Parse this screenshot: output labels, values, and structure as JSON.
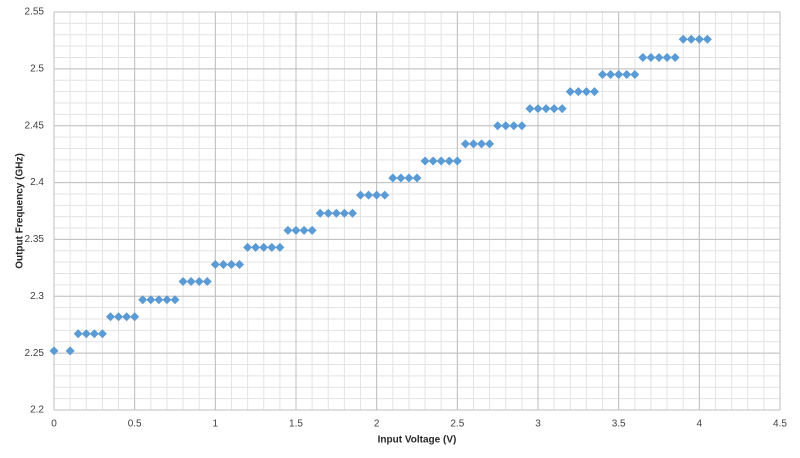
{
  "chart_data": {
    "type": "scatter",
    "xlabel": "Input Voltage (V)",
    "ylabel": "Output Frequency (GHz)",
    "xlim": [
      0,
      4.5
    ],
    "xticks": [
      0,
      0.5,
      1,
      1.5,
      2,
      2.5,
      3,
      3.5,
      4,
      4.5
    ],
    "ylim": [
      2.2,
      2.55
    ],
    "yticks": [
      2.2,
      2.25,
      2.3,
      2.35,
      2.4,
      2.45,
      2.5,
      2.55
    ],
    "grid": true,
    "minor_grid": {
      "x": 0.1,
      "y": 0.01
    },
    "color": "#5b9bd5",
    "x": [
      0,
      0.1,
      0.15,
      0.2,
      0.25,
      0.3,
      0.35,
      0.4,
      0.45,
      0.5,
      0.55,
      0.6,
      0.65,
      0.7,
      0.75,
      0.8,
      0.85,
      0.9,
      0.95,
      1,
      1.05,
      1.1,
      1.15,
      1.2,
      1.25,
      1.3,
      1.35,
      1.4,
      1.45,
      1.5,
      1.55,
      1.6,
      1.65,
      1.7,
      1.75,
      1.8,
      1.85,
      1.9,
      1.95,
      2,
      2.05,
      2.1,
      2.15,
      2.2,
      2.25,
      2.3,
      2.35,
      2.4,
      2.45,
      2.5,
      2.55,
      2.6,
      2.65,
      2.7,
      2.75,
      2.8,
      2.85,
      2.9,
      2.95,
      3,
      3.05,
      3.1,
      3.15,
      3.2,
      3.25,
      3.3,
      3.35,
      3.4,
      3.45,
      3.5,
      3.55,
      3.6,
      3.65,
      3.7,
      3.75,
      3.8,
      3.85,
      3.9,
      3.95,
      4,
      4.05
    ],
    "values": [
      2.252,
      2.252,
      2.267,
      2.267,
      2.267,
      2.267,
      2.282,
      2.282,
      2.282,
      2.282,
      2.297,
      2.297,
      2.297,
      2.297,
      2.297,
      2.313,
      2.313,
      2.313,
      2.313,
      2.328,
      2.328,
      2.328,
      2.328,
      2.343,
      2.343,
      2.343,
      2.343,
      2.343,
      2.358,
      2.358,
      2.358,
      2.358,
      2.373,
      2.373,
      2.373,
      2.373,
      2.373,
      2.389,
      2.389,
      2.389,
      2.389,
      2.404,
      2.404,
      2.404,
      2.404,
      2.419,
      2.419,
      2.419,
      2.419,
      2.419,
      2.434,
      2.434,
      2.434,
      2.434,
      2.45,
      2.45,
      2.45,
      2.45,
      2.465,
      2.465,
      2.465,
      2.465,
      2.465,
      2.48,
      2.48,
      2.48,
      2.48,
      2.495,
      2.495,
      2.495,
      2.495,
      2.495,
      2.51,
      2.51,
      2.51,
      2.51,
      2.51,
      2.526,
      2.526,
      2.526,
      2.526
    ]
  }
}
